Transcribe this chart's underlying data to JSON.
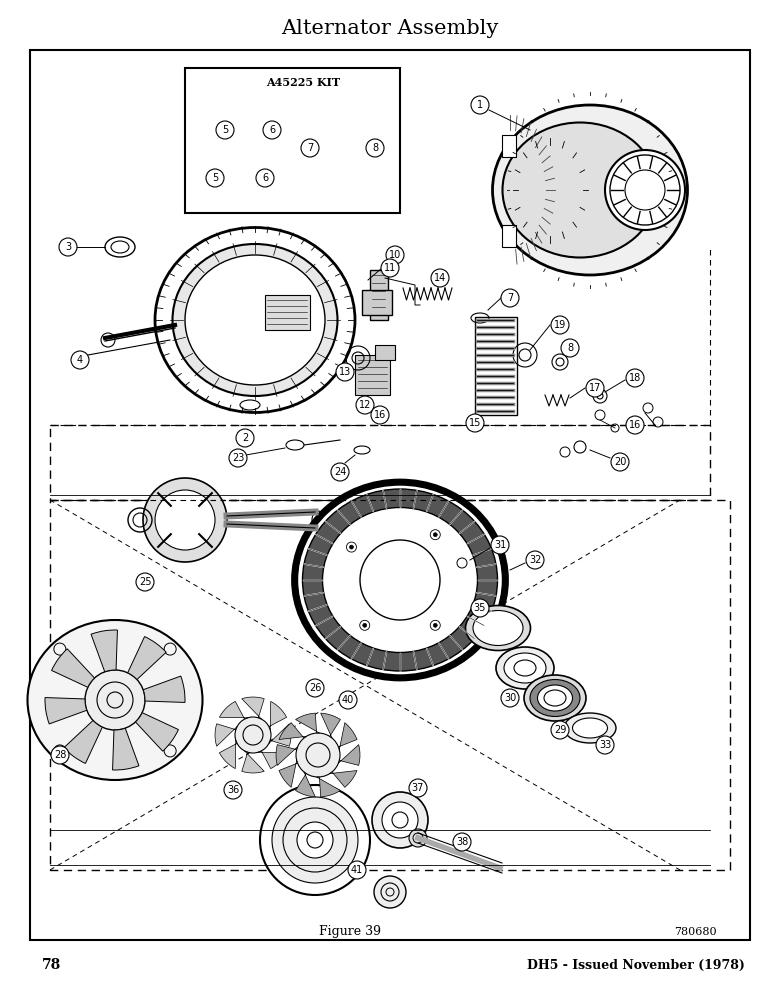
{
  "title": "Alternator Assembly",
  "figure_label": "Figure 39",
  "figure_number": "780680",
  "page_number": "78",
  "footer_right": "DH5 - Issued November (1978)",
  "background_color": "#ffffff",
  "border_color": "#000000",
  "kit_label": "A45225 KIT",
  "font_size_title": 15,
  "font_size_body": 8,
  "font_size_footer": 9,
  "font_size_page": 10
}
